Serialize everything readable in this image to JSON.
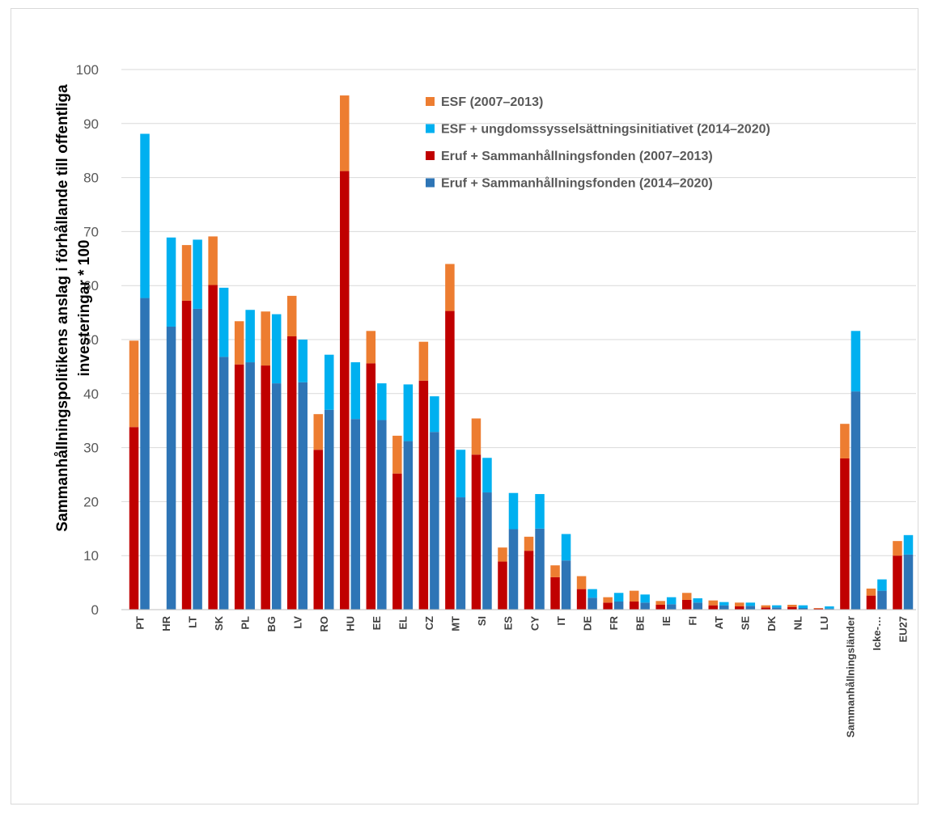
{
  "chart_data": {
    "type": "bar",
    "stacked": true,
    "grouped": true,
    "categories": [
      "PT",
      "HR",
      "LT",
      "SK",
      "PL",
      "BG",
      "LV",
      "RO",
      "HU",
      "EE",
      "EL",
      "CZ",
      "MT",
      "SI",
      "ES",
      "CY",
      "IT",
      "DE",
      "FR",
      "BE",
      "IE",
      "FI",
      "AT",
      "SE",
      "DK",
      "NL",
      "LU",
      "Sammanhållningsländer",
      "Icke-…",
      "EU27"
    ],
    "ylabel": [
      "Sammanhållningspolitikens anslag i förhållande till offentliga",
      "investeringar * 100"
    ],
    "ylim": [
      0,
      100
    ],
    "yticks": [
      0,
      10,
      20,
      30,
      40,
      50,
      60,
      70,
      80,
      90,
      100
    ],
    "grid": true,
    "legend_position": "top-right",
    "series": [
      {
        "name": "ESF (2007–2013)",
        "color": "#ED7D31",
        "group": "2007–2013",
        "stack_order": 2,
        "values": [
          16.0,
          0,
          10.3,
          9.0,
          8.0,
          10.0,
          7.5,
          6.6,
          14.0,
          6.0,
          7.0,
          7.2,
          8.7,
          6.7,
          2.6,
          2.6,
          2.2,
          2.4,
          1.0,
          2.0,
          0.7,
          1.3,
          0.9,
          0.7,
          0.4,
          0.4,
          0.1,
          6.4,
          1.3,
          2.7
        ]
      },
      {
        "name": "ESF + ungdomssysselsättningsinitiativet (2014–2020)",
        "color": "#00B0F0",
        "group": "2014–2020",
        "stack_order": 2,
        "values": [
          30.4,
          16.5,
          12.8,
          12.8,
          9.7,
          12.8,
          7.9,
          10.2,
          10.5,
          6.8,
          10.5,
          6.6,
          8.8,
          6.4,
          6.7,
          6.4,
          4.9,
          1.6,
          1.6,
          1.5,
          1.3,
          0.8,
          0.6,
          0.6,
          0.4,
          0.5,
          0.4,
          11.2,
          2.1,
          3.6
        ]
      },
      {
        "name": "Eruf + Sammanhållningsfonden (2007–2013)",
        "color": "#C00000",
        "group": "2007–2013",
        "stack_order": 1,
        "values": [
          33.8,
          0,
          57.2,
          60.1,
          45.4,
          45.2,
          50.6,
          29.6,
          81.2,
          45.6,
          25.2,
          42.4,
          55.3,
          28.7,
          8.9,
          10.9,
          6.0,
          3.8,
          1.3,
          1.5,
          0.9,
          1.8,
          0.8,
          0.6,
          0.4,
          0.5,
          0.2,
          28.0,
          2.6,
          10.0
        ]
      },
      {
        "name": "Eruf + Sammanhållningsfonden (2014–2020)",
        "color": "#2E75B6",
        "group": "2014–2020",
        "stack_order": 1,
        "values": [
          57.7,
          52.4,
          55.7,
          46.8,
          45.8,
          41.9,
          42.1,
          37.0,
          35.3,
          35.1,
          31.2,
          32.9,
          20.8,
          21.7,
          14.9,
          15.0,
          9.1,
          2.2,
          1.5,
          1.3,
          1.0,
          1.3,
          0.8,
          0.7,
          0.4,
          0.3,
          0.2,
          40.4,
          3.5,
          10.2
        ]
      }
    ]
  }
}
